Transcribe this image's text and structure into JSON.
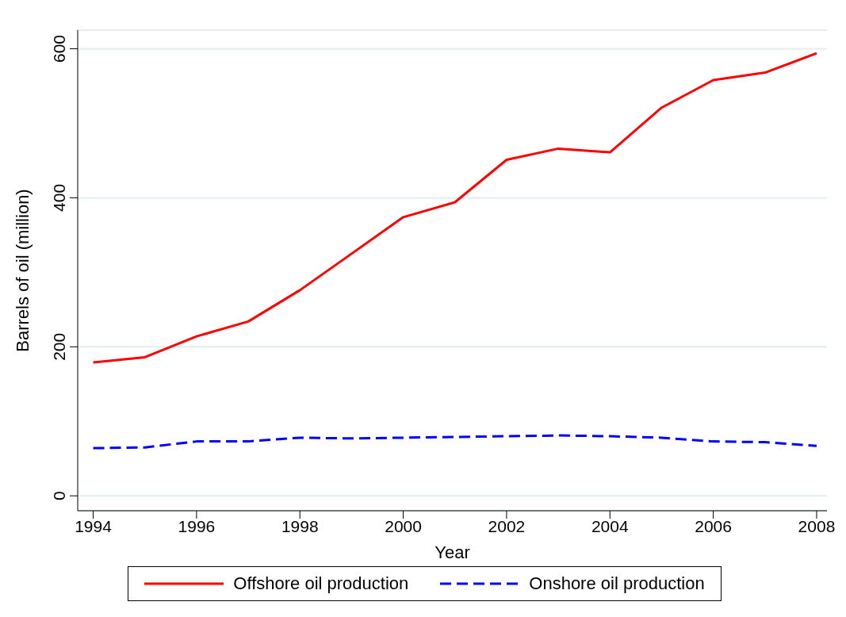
{
  "chart_data": {
    "type": "line",
    "xlabel": "Year",
    "ylabel": "Barrels of oil (million)",
    "x": [
      1994,
      1995,
      1996,
      1997,
      1998,
      1999,
      2000,
      2001,
      2002,
      2003,
      2004,
      2005,
      2006,
      2007,
      2008
    ],
    "series": [
      {
        "name": "Offshore oil production",
        "color": "#ff0000",
        "line_style": "solid",
        "values": [
          179,
          186,
          214,
          234,
          276,
          325,
          374,
          394,
          451,
          466,
          461,
          521,
          558,
          568,
          594
        ]
      },
      {
        "name": "Onshore oil production",
        "color": "#0000ff",
        "line_style": "dashed",
        "values": [
          64,
          65,
          73,
          73,
          78,
          77,
          78,
          79,
          80,
          81,
          80,
          78,
          73,
          72,
          67
        ]
      }
    ],
    "xlim": [
      1993.7,
      2008.2
    ],
    "xticks": [
      1994,
      1996,
      1998,
      2000,
      2002,
      2004,
      2006,
      2008
    ],
    "ylim": [
      -20,
      625
    ],
    "yticks": [
      0,
      200,
      400,
      600
    ],
    "grid": "y",
    "legend": "bottom",
    "marker": "none"
  }
}
